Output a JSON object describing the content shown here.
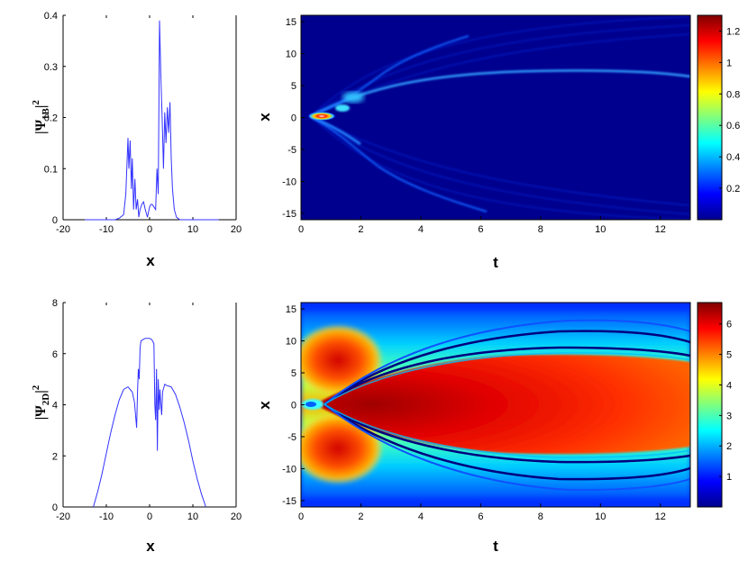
{
  "chart_data": [
    {
      "id": "profile_1B",
      "type": "line",
      "xlabel": "x",
      "ylabel": {
        "base": "|Ψ",
        "sub": "1B",
        "end": "|",
        "sup": "2"
      },
      "xlim": [
        -20,
        20
      ],
      "ylim": [
        0,
        0.4
      ],
      "xticks": [
        "-20",
        "-10",
        "0",
        "10",
        "20"
      ],
      "yticks": [
        "0",
        "0.1",
        "0.2",
        "0.3",
        "0.4"
      ],
      "color": "#3333ff",
      "series": [
        {
          "x": [
            -15,
            -8,
            -7,
            -6,
            -5.5,
            -5,
            -4.8,
            -4.5,
            -4.2,
            -4,
            -3.7,
            -3.4,
            -3.1,
            -2.8,
            -2.5,
            -2.2,
            -1.8,
            -1.4,
            -1,
            -0.5,
            0,
            0.3,
            0.6,
            1,
            1.4,
            1.7,
            2,
            2.3,
            2.6,
            2.9,
            3.2,
            3.5,
            3.8,
            4.1,
            4.4,
            4.7,
            5,
            5.3,
            5.7,
            6.2,
            7,
            8,
            10,
            16
          ],
          "y": [
            0,
            0,
            0.003,
            0.01,
            0.05,
            0.16,
            0.1,
            0.155,
            0.06,
            0.12,
            0.02,
            0.08,
            0.02,
            0.04,
            0.005,
            0.02,
            0.03,
            0.035,
            0.02,
            0.005,
            0.025,
            0.03,
            0.03,
            0.025,
            0.02,
            0.1,
            0.05,
            0.39,
            0.28,
            0.2,
            0.1,
            0.21,
            0.15,
            0.22,
            0.17,
            0.23,
            0.12,
            0.06,
            0.02,
            0.005,
            0,
            0,
            0,
            0
          ]
        }
      ]
    },
    {
      "id": "profile_2D",
      "type": "line",
      "xlabel": "x",
      "ylabel": {
        "base": "|Ψ",
        "sub": "2D",
        "end": "|",
        "sup": "2"
      },
      "xlim": [
        -20,
        20
      ],
      "ylim": [
        0,
        8
      ],
      "xticks": [
        "-20",
        "-10",
        "0",
        "10",
        "20"
      ],
      "yticks": [
        "0",
        "2",
        "4",
        "6",
        "8"
      ],
      "color": "#3333ff",
      "series": [
        {
          "x": [
            -13,
            -12,
            -11,
            -10,
            -9,
            -8,
            -7,
            -6,
            -5,
            -4.5,
            -4,
            -3.5,
            -3,
            -2.8,
            -2.6,
            -2.4,
            -2.2,
            -2,
            -1.5,
            -1,
            -0.5,
            0,
            0.5,
            1,
            1.2,
            1.4,
            1.6,
            1.8,
            2,
            2.2,
            2.4,
            2.6,
            2.8,
            3,
            3.5,
            4,
            5,
            6,
            7,
            8,
            9,
            10,
            11,
            12,
            13
          ],
          "y": [
            0,
            0.6,
            1.3,
            2.1,
            2.9,
            3.6,
            4.2,
            4.6,
            4.7,
            4.6,
            4.5,
            4.1,
            3.1,
            4.5,
            5.4,
            5.0,
            6.2,
            6.5,
            6.55,
            6.6,
            6.6,
            6.6,
            6.55,
            6.4,
            4.0,
            3.4,
            5.4,
            2.2,
            5.0,
            3.8,
            4.6,
            4.0,
            3.6,
            4.5,
            4.8,
            4.75,
            4.7,
            4.4,
            3.9,
            3.3,
            2.6,
            1.8,
            1.1,
            0.5,
            0
          ]
        }
      ]
    },
    {
      "id": "heatmap_1B",
      "type": "heatmap",
      "xlabel": "t",
      "ylabel": "x",
      "xlim": [
        0,
        13
      ],
      "ylim": [
        -16,
        16
      ],
      "xticks": [
        "0",
        "2",
        "4",
        "6",
        "8",
        "10",
        "12"
      ],
      "yticks": [
        "-15",
        "-10",
        "-5",
        "0",
        "5",
        "10",
        "15"
      ],
      "colorbar": {
        "ticks": [
          "0.2",
          "0.4",
          "0.6",
          "0.8",
          "1",
          "1.2"
        ],
        "range": [
          0,
          1.3
        ],
        "colormap": "jet"
      }
    },
    {
      "id": "heatmap_2D",
      "type": "heatmap",
      "xlabel": "t",
      "ylabel": "x",
      "xlim": [
        0,
        13
      ],
      "ylim": [
        -16,
        16
      ],
      "xticks": [
        "0",
        "2",
        "4",
        "6",
        "8",
        "10",
        "12"
      ],
      "yticks": [
        "-15",
        "-10",
        "-5",
        "0",
        "5",
        "10",
        "15"
      ],
      "colorbar": {
        "ticks": [
          "1",
          "2",
          "3",
          "4",
          "5",
          "6"
        ],
        "range": [
          0,
          6.7
        ],
        "colormap": "jet"
      }
    }
  ]
}
